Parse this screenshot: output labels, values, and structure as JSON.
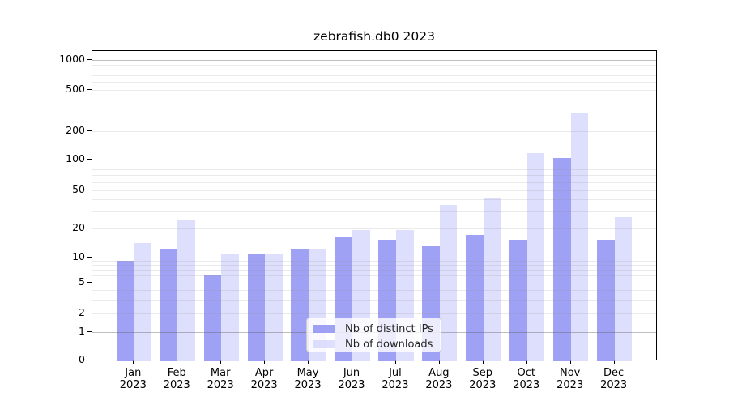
{
  "title": "zebrafish.db0 2023",
  "chart_data": {
    "type": "bar",
    "title": "zebrafish.db0 2023",
    "categories": [
      "Jan",
      "Feb",
      "Mar",
      "Apr",
      "May",
      "Jun",
      "Jul",
      "Aug",
      "Sep",
      "Oct",
      "Nov",
      "Dec"
    ],
    "year": "2023",
    "series": [
      {
        "name": "Nb of distinct IPs",
        "color": "#A3A6F3",
        "values": [
          9,
          12,
          6,
          11,
          12,
          16,
          15,
          13,
          17,
          15,
          103,
          15
        ]
      },
      {
        "name": "Nb of downloads",
        "color": "#D9DAFB",
        "values": [
          14,
          24,
          11,
          11,
          12,
          19,
          19,
          35,
          42,
          115,
          300,
          26
        ]
      }
    ],
    "y_axis": {
      "scale": "pseudo-log",
      "tick_labels": [
        "0",
        "1",
        "2",
        "5",
        "10",
        "20",
        "50",
        "100",
        "200",
        "500",
        "1000"
      ],
      "tick_values": [
        0,
        1,
        2,
        5,
        10,
        20,
        50,
        100,
        200,
        500,
        1000
      ],
      "major_gridlines": [
        1,
        10,
        100,
        1000
      ],
      "minor_gridlines": [
        2,
        3,
        4,
        5,
        6,
        7,
        8,
        9,
        20,
        30,
        40,
        50,
        60,
        70,
        80,
        90,
        200,
        300,
        400,
        500,
        600,
        700,
        800,
        900
      ],
      "range": [
        0,
        1000
      ]
    },
    "x_axis": {
      "label_format": "month over year, two lines"
    },
    "legend_position": "lower center",
    "grid": true
  },
  "legend": {
    "items": [
      {
        "label": "Nb of distinct IPs"
      },
      {
        "label": "Nb of downloads"
      }
    ]
  },
  "colors": {
    "bar_distinct_ips": "#A3A6F3",
    "bar_downloads": "#D9DAFB",
    "grid_major": "#BEBEBE",
    "grid_minor": "#E8E8E8",
    "axis": "#000000",
    "legend_border": "#CCCCCC",
    "text": "#000000"
  }
}
